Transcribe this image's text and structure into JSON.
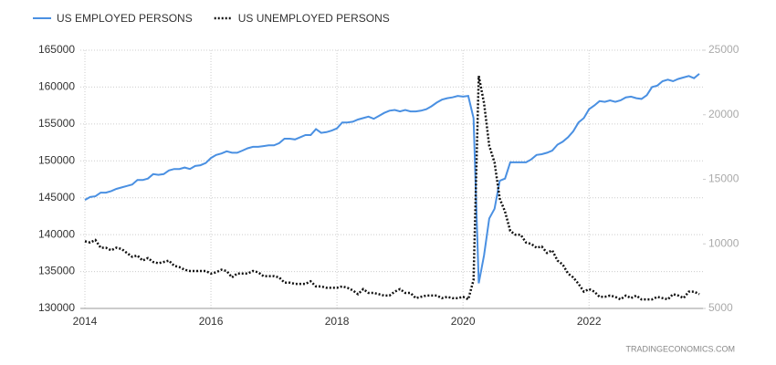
{
  "chart_data": {
    "type": "line",
    "source": "TRADINGECONOMICS.COM",
    "x": [
      "2014-01",
      "2014-02",
      "2014-03",
      "2014-04",
      "2014-05",
      "2014-06",
      "2014-07",
      "2014-08",
      "2014-09",
      "2014-10",
      "2014-11",
      "2014-12",
      "2015-01",
      "2015-02",
      "2015-03",
      "2015-04",
      "2015-05",
      "2015-06",
      "2015-07",
      "2015-08",
      "2015-09",
      "2015-10",
      "2015-11",
      "2015-12",
      "2016-01",
      "2016-02",
      "2016-03",
      "2016-04",
      "2016-05",
      "2016-06",
      "2016-07",
      "2016-08",
      "2016-09",
      "2016-10",
      "2016-11",
      "2016-12",
      "2017-01",
      "2017-02",
      "2017-03",
      "2017-04",
      "2017-05",
      "2017-06",
      "2017-07",
      "2017-08",
      "2017-09",
      "2017-10",
      "2017-11",
      "2017-12",
      "2018-01",
      "2018-02",
      "2018-03",
      "2018-04",
      "2018-05",
      "2018-06",
      "2018-07",
      "2018-08",
      "2018-09",
      "2018-10",
      "2018-11",
      "2018-12",
      "2019-01",
      "2019-02",
      "2019-03",
      "2019-04",
      "2019-05",
      "2019-06",
      "2019-07",
      "2019-08",
      "2019-09",
      "2019-10",
      "2019-11",
      "2019-12",
      "2020-01",
      "2020-02",
      "2020-03",
      "2020-04",
      "2020-05",
      "2020-06",
      "2020-07",
      "2020-08",
      "2020-09",
      "2020-10",
      "2020-11",
      "2020-12",
      "2021-01",
      "2021-02",
      "2021-03",
      "2021-04",
      "2021-05",
      "2021-06",
      "2021-07",
      "2021-08",
      "2021-09",
      "2021-10",
      "2021-11",
      "2021-12",
      "2022-01",
      "2022-02",
      "2022-03",
      "2022-04",
      "2022-05",
      "2022-06",
      "2022-07",
      "2022-08",
      "2022-09",
      "2022-10",
      "2022-11",
      "2022-12",
      "2023-01",
      "2023-02",
      "2023-03",
      "2023-04",
      "2023-05",
      "2023-06",
      "2023-07",
      "2023-08",
      "2023-09",
      "2023-10"
    ],
    "series": [
      {
        "name": "US EMPLOYED PERSONS",
        "color": "#4a90e2",
        "style": "solid",
        "values": [
          144700,
          145100,
          145200,
          145700,
          145700,
          145900,
          146200,
          146400,
          146600,
          146800,
          147400,
          147400,
          147600,
          148200,
          148100,
          148200,
          148700,
          148900,
          148900,
          149100,
          148900,
          149300,
          149400,
          149700,
          150400,
          150800,
          151000,
          151300,
          151100,
          151100,
          151400,
          151700,
          151900,
          151900,
          152000,
          152100,
          152100,
          152400,
          153000,
          153000,
          152900,
          153200,
          153500,
          153500,
          154300,
          153800,
          153900,
          154100,
          154400,
          155200,
          155200,
          155300,
          155600,
          155800,
          156000,
          155700,
          156100,
          156500,
          156800,
          156900,
          156700,
          156900,
          156700,
          156700,
          156800,
          157000,
          157400,
          157900,
          158300,
          158500,
          158600,
          158800,
          158700,
          158800,
          155800,
          133400,
          137200,
          142200,
          143500,
          147300,
          147600,
          149800,
          149800,
          149800,
          149800,
          150200,
          150800,
          150900,
          151100,
          151400,
          152200,
          152600,
          153200,
          154000,
          155200,
          155800,
          157000,
          157500,
          158100,
          158000,
          158200,
          158000,
          158200,
          158600,
          158700,
          158500,
          158400,
          158900,
          160000,
          160200,
          160800,
          161000,
          160800,
          161100,
          161300,
          161500,
          161200,
          161800
        ]
      },
      {
        "name": "US UNEMPLOYED PERSONS",
        "color": "#111111",
        "style": "dotted",
        "axis": "y2",
        "values": [
          10200,
          10100,
          10300,
          9700,
          9700,
          9500,
          9700,
          9600,
          9300,
          9000,
          9100,
          8700,
          8900,
          8600,
          8500,
          8600,
          8700,
          8300,
          8200,
          8000,
          7900,
          7900,
          7900,
          7900,
          7700,
          7800,
          8000,
          7900,
          7400,
          7700,
          7700,
          7700,
          7900,
          7800,
          7500,
          7500,
          7500,
          7400,
          7000,
          7000,
          6900,
          6900,
          6900,
          7100,
          6700,
          6700,
          6600,
          6600,
          6600,
          6700,
          6600,
          6400,
          6100,
          6500,
          6200,
          6200,
          6100,
          6000,
          6000,
          6300,
          6500,
          6200,
          6200,
          5800,
          5900,
          6000,
          6000,
          6000,
          5800,
          5900,
          5800,
          5800,
          5900,
          5700,
          7200,
          23000,
          20900,
          17600,
          16300,
          13500,
          12500,
          11000,
          10700,
          10700,
          10100,
          10000,
          9700,
          9800,
          9300,
          9500,
          8700,
          8400,
          7700,
          7400,
          6900,
          6300,
          6500,
          6300,
          5900,
          5900,
          6000,
          5900,
          5700,
          6000,
          5800,
          6000,
          5700,
          5700,
          5700,
          5900,
          5800,
          5700,
          6100,
          6000,
          5800,
          6300,
          6300,
          6100
        ]
      }
    ],
    "xlim": [
      "2014-01",
      "2023-10"
    ],
    "xticks": [
      {
        "value": "2014-01",
        "label": "2014"
      },
      {
        "value": "2016-01",
        "label": "2016"
      },
      {
        "value": "2018-01",
        "label": "2018"
      },
      {
        "value": "2020-01",
        "label": "2020"
      },
      {
        "value": "2022-01",
        "label": "2022"
      }
    ],
    "ylim": [
      130000,
      165000
    ],
    "yticks": [
      130000,
      135000,
      140000,
      145000,
      150000,
      155000,
      160000,
      165000
    ],
    "y2lim": [
      5000,
      25000
    ],
    "y2ticks": [
      5000,
      10000,
      15000,
      20000,
      25000
    ],
    "grid": true
  }
}
